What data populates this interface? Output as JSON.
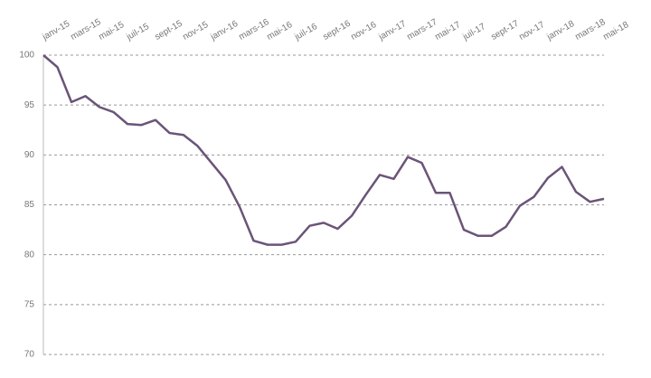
{
  "chart_data": {
    "type": "line",
    "categories": [
      "janv-15",
      null,
      "mars-15",
      null,
      "mai-15",
      null,
      "juil-15",
      null,
      "sept-15",
      null,
      "nov-15",
      null,
      "janv-16",
      null,
      "mars-16",
      null,
      "mai-16",
      null,
      "juil-16",
      null,
      "sept-16",
      null,
      "nov-16",
      null,
      "janv-17",
      null,
      "mars-17",
      null,
      "mai-17",
      null,
      "juil-17",
      null,
      "sept-17",
      null,
      "nov-17",
      null,
      "janv-18",
      null,
      "mars-18",
      null,
      "mai-18"
    ],
    "series": [
      {
        "color": "#6b5478",
        "values": [
          100,
          98.8,
          95.3,
          95.9,
          94.8,
          94.3,
          93.1,
          93.0,
          93.5,
          92.2,
          92.0,
          90.9,
          89.2,
          87.5,
          84.8,
          81.4,
          81.0,
          81.0,
          81.3,
          82.9,
          83.2,
          82.6,
          83.9,
          86.0,
          88.0,
          87.6,
          89.8,
          89.2,
          86.2,
          86.2,
          82.5,
          81.9,
          81.9,
          82.8,
          84.9,
          85.8,
          87.7,
          88.8,
          86.3,
          85.3,
          85.6
        ]
      }
    ],
    "ylim": [
      70,
      100
    ],
    "yticks": [
      70,
      75,
      80,
      85,
      90,
      95,
      100
    ],
    "grid": true
  }
}
